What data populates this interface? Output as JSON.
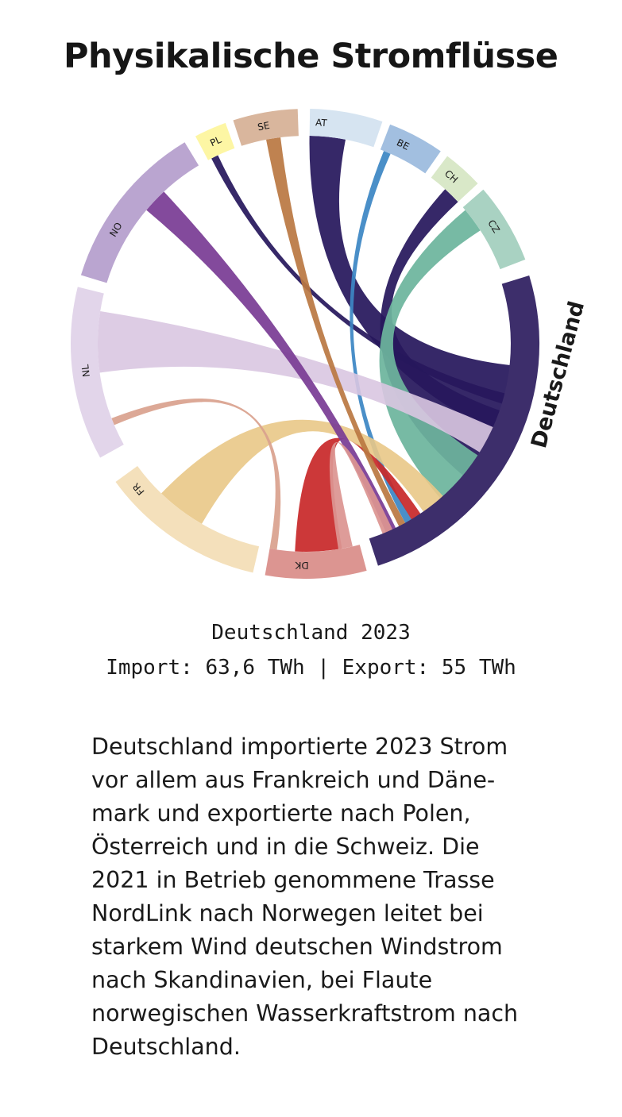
{
  "title": "Physikalische Stromflüsse",
  "chart_data": {
    "type": "chord",
    "center_node": "Deutschland",
    "year": "2023",
    "nodes": [
      {
        "code": "AT",
        "color": "#d6e4f1"
      },
      {
        "code": "BE",
        "color": "#a2bfe0"
      },
      {
        "code": "CH",
        "color": "#d9e8c8"
      },
      {
        "code": "CZ",
        "color": "#a9d2c2"
      },
      {
        "code": "DK",
        "color": "#dc9591"
      },
      {
        "code": "FR",
        "color": "#f4e0bb"
      },
      {
        "code": "NL",
        "color": "#e2d5ea"
      },
      {
        "code": "NO",
        "color": "#baa5d0"
      },
      {
        "code": "PL",
        "color": "#fdf6a4"
      },
      {
        "code": "SE",
        "color": "#d9b69d"
      },
      {
        "code": "Deutschland",
        "color": "#3d2e6b"
      }
    ],
    "flows": [
      {
        "from": "Deutschland",
        "to": "AT",
        "color": "#27185d"
      },
      {
        "from": "Deutschland",
        "to": "CH",
        "color": "#27185d"
      },
      {
        "from": "Deutschland",
        "to": "PL",
        "color": "#27185d"
      },
      {
        "from": "BE",
        "to": "Deutschland",
        "color": "#3c86c4"
      },
      {
        "from": "CZ",
        "to": "Deutschland",
        "color": "#6db59d"
      },
      {
        "from": "DK",
        "to": "Deutschland",
        "color": "#c8292a"
      },
      {
        "from": "FR",
        "to": "Deutschland",
        "color": "#e9c887"
      },
      {
        "from": "NL",
        "to": "Deutschland",
        "color": "#d9c6e1"
      },
      {
        "from": "NO",
        "to": "Deutschland",
        "color": "#7a3c95"
      },
      {
        "from": "SE",
        "to": "Deutschland",
        "color": "#ba7843"
      },
      {
        "from": "Deutschland",
        "to": "DK",
        "color": "#dc9591"
      },
      {
        "from": "Deutschland",
        "to": "FR",
        "color": "#d9a18e"
      }
    ]
  },
  "summary": {
    "line1": "Deutschland 2023",
    "line2": "Import: 63,6 TWh | Export: 55 TWh"
  },
  "description": [
    "Deutschland importierte 2023 Strom",
    "vor allem aus Frankreich und Däne-",
    "mark und exportierte nach Polen,",
    "Österreich und in die Schweiz. Die",
    "2021 in Betrieb genommene Trasse",
    "NordLink nach Norwegen leitet bei",
    "starkem Wind deutschen Windstrom",
    "nach Skandinavien, bei Flaute",
    "norwegischen Wasserkraftstrom nach",
    "Deutschland."
  ]
}
